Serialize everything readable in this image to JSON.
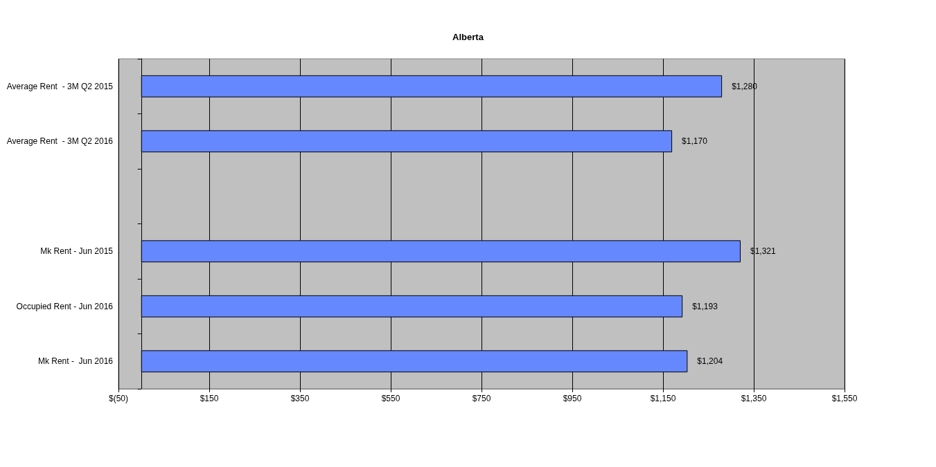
{
  "chart_data": {
    "type": "bar",
    "title": "Alberta",
    "orientation": "horizontal",
    "categories": [
      "Average Rent  - 3M Q2 2015",
      "Average Rent  - 3M Q2 2016",
      null,
      "Mk Rent - Jun 2015",
      "Occupied Rent - Jun 2016",
      "Mk Rent -  Jun 2016"
    ],
    "values": [
      1280,
      1170,
      null,
      1321,
      1193,
      1204
    ],
    "value_labels": [
      "$1,280",
      "$1,170",
      null,
      "$1,321",
      "$1,193",
      "$1,204"
    ],
    "color": "#6688ff",
    "xlim": [
      -50,
      1550
    ],
    "xticks": [
      {
        "value": -50,
        "label": "$(50)"
      },
      {
        "value": 150,
        "label": "$150"
      },
      {
        "value": 350,
        "label": "$350"
      },
      {
        "value": 550,
        "label": "$550"
      },
      {
        "value": 750,
        "label": "$750"
      },
      {
        "value": 950,
        "label": "$950"
      },
      {
        "value": 1150,
        "label": "$1,150"
      },
      {
        "value": 1350,
        "label": "$1,350"
      },
      {
        "value": 1550,
        "label": "$1,550"
      }
    ],
    "grid": "x"
  }
}
